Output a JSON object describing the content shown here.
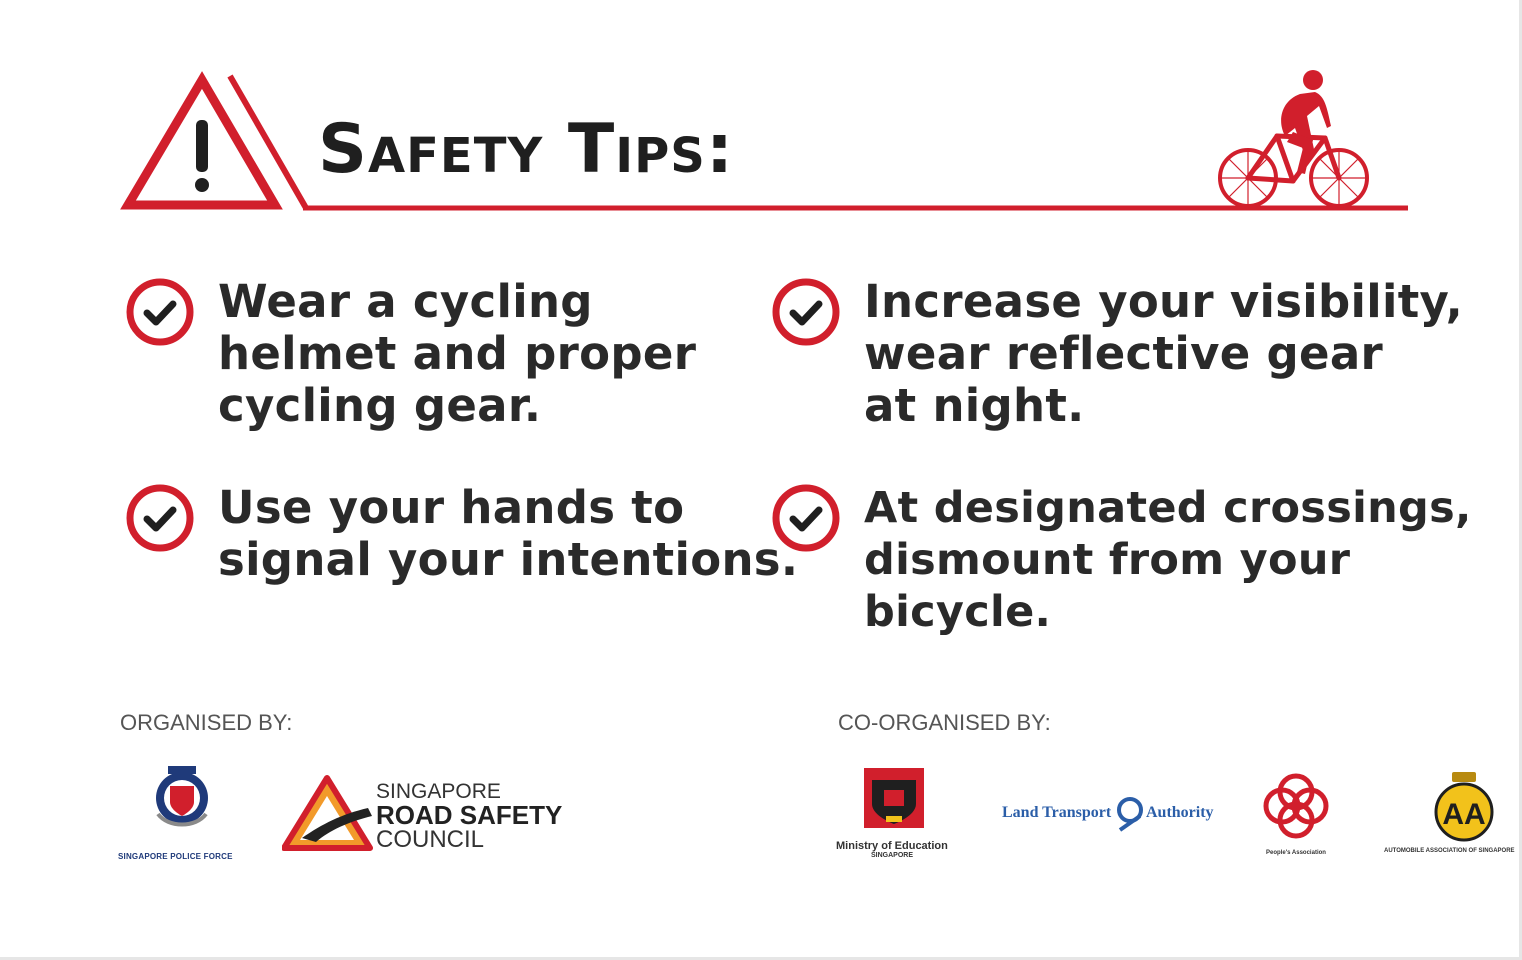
{
  "header": {
    "title": "Safety Tips:",
    "warning_icon": "warning-triangle-icon",
    "cyclist_icon": "cyclist-icon"
  },
  "tips": [
    {
      "text": "Wear a cycling\nhelmet and proper\ncycling gear."
    },
    {
      "text": "Increase your visibility,\nwear reflective gear\nat night."
    },
    {
      "text": "Use your hands to\nsignal your intentions."
    },
    {
      "text": "At designated crossings,\ndismount from your bicycle."
    }
  ],
  "organised_by": {
    "label": "ORGANISED BY:",
    "logos": {
      "police": "SINGAPORE POLICE FORCE",
      "rsc_line1": "SINGAPORE",
      "rsc_line2": "ROAD SAFETY",
      "rsc_line3": "COUNCIL"
    }
  },
  "co_organised_by": {
    "label": "CO-ORGANISED BY:",
    "logos": {
      "moe_line1": "Ministry of Education",
      "moe_line2": "SINGAPORE",
      "lta_left": "Land Transport",
      "lta_right": "Authority",
      "pa": "People's Association",
      "aas": "AUTOMOBILE ASSOCIATION OF SINGAPORE"
    }
  },
  "colors": {
    "accent_red": "#d11f2c",
    "text_dark": "#222222",
    "label_grey": "#555555",
    "lta_blue": "#2b5ea8",
    "aas_yellow": "#f2c21b"
  }
}
